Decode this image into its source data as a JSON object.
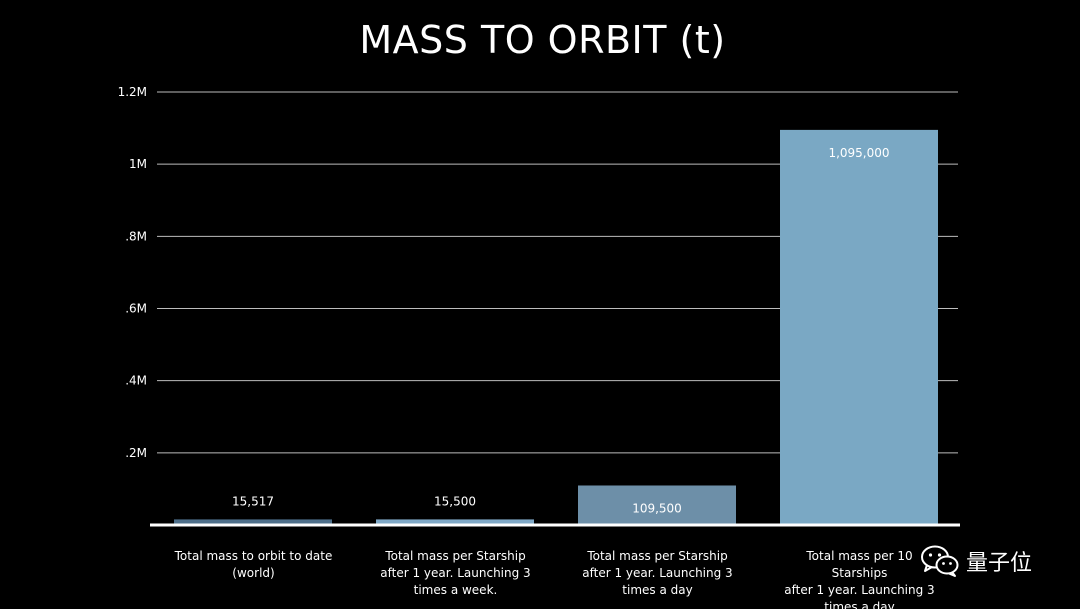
{
  "chart_data": {
    "type": "bar",
    "title": "MASS TO ORBIT (t)",
    "xlabel": "",
    "ylabel": "",
    "ylim": [
      0,
      1200000
    ],
    "grid": true,
    "y_ticks": [
      {
        "value": 200000,
        "label": ".2M"
      },
      {
        "value": 400000,
        "label": ".4M"
      },
      {
        "value": 600000,
        "label": ".6M"
      },
      {
        "value": 800000,
        "label": ".8M"
      },
      {
        "value": 1000000,
        "label": "1M"
      },
      {
        "value": 1200000,
        "label": "1.2M"
      }
    ],
    "categories": [
      [
        "Total mass to orbit to date",
        "(world)"
      ],
      [
        "Total mass per Starship",
        "after 1 year. Launching 3",
        "times a week."
      ],
      [
        "Total mass per Starship",
        "after 1 year. Launching 3",
        "times a day"
      ],
      [
        "Total mass per 10 Starships",
        "after 1 year. Launching 3",
        "times a day"
      ]
    ],
    "values": [
      15517,
      15500,
      109500,
      1095000
    ],
    "data_labels": [
      "15,517",
      "15,500",
      "109,500",
      "1,095,000"
    ],
    "bar_colors": [
      "#4e6f8a",
      "#7fa8c6",
      "#6d8fa8",
      "#7aa8c4"
    ]
  },
  "watermark": {
    "icon": "wechat-icon",
    "text": "量子位"
  }
}
